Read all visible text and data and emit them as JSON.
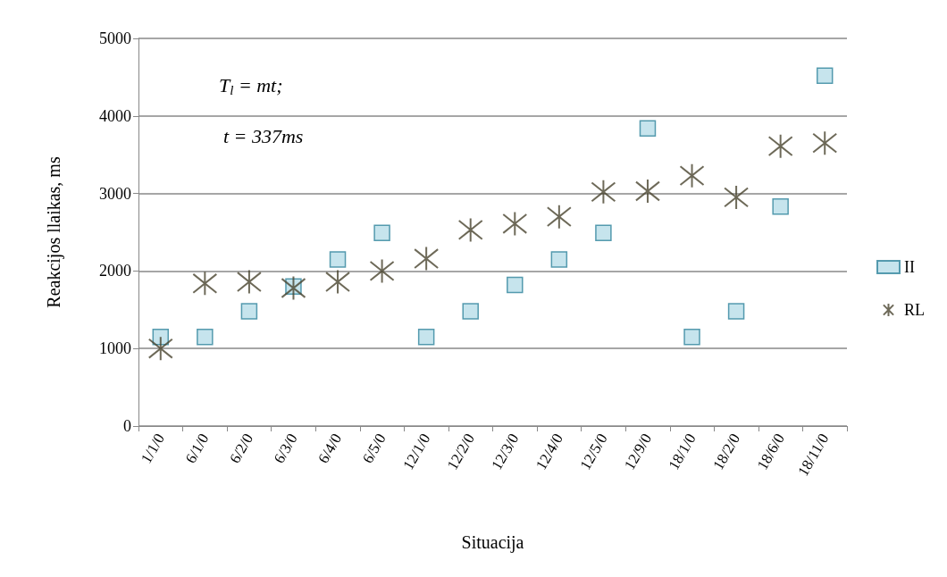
{
  "chart_data": {
    "type": "scatter",
    "xlabel": "Situacija",
    "ylabel": "Reakcijos llaikas, ms",
    "categories": [
      "1/1/0",
      "6/1/0",
      "6/2/0",
      "6/3/0",
      "6/4/0",
      "6/5/0",
      "12/1/0",
      "12/2/0",
      "12/3/0",
      "12/4/0",
      "12/5/0",
      "12/9/0",
      "18/1/0",
      "18/2/0",
      "18/6/0",
      "18/11/0"
    ],
    "series": [
      {
        "name": "II",
        "color": "#b8dde8",
        "marker": "square",
        "values": [
          1150,
          1150,
          1480,
          1800,
          2150,
          2490,
          1150,
          1480,
          1820,
          2150,
          2490,
          3840,
          1150,
          1480,
          2830,
          4520
        ]
      },
      {
        "name": "RL",
        "color": "#4a4530",
        "marker": "cross",
        "values": [
          1000,
          1840,
          1860,
          1780,
          1860,
          2000,
          2160,
          2530,
          2610,
          2700,
          3020,
          3030,
          3230,
          2950,
          3610,
          3650
        ]
      }
    ],
    "ylim": [
      0,
      5000
    ],
    "yticks": [
      0,
      1000,
      2000,
      3000,
      4000,
      5000
    ],
    "grid": "y",
    "legend": "right",
    "annotations": [
      "T$_{l}$ = mt;",
      "t = 337ms"
    ]
  }
}
